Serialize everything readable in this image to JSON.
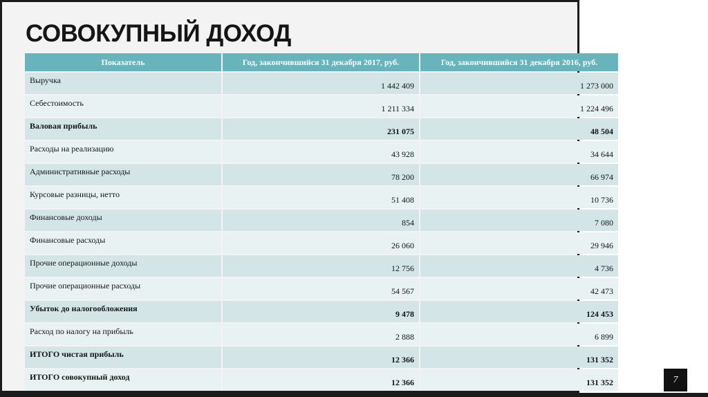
{
  "slide": {
    "title": "СОВОКУПНЫЙ ДОХОД",
    "page_number": "7"
  },
  "table": {
    "headers": [
      "Показатель",
      "Год, закончившийся 31 декабря 2017, руб.",
      "Год, закончившийся 31 декабря 2016, руб."
    ],
    "rows": [
      {
        "label": "Выручка",
        "y2017": "1 442 409",
        "y2016": "1 273 000",
        "bold": false
      },
      {
        "label": "Себестоимость",
        "y2017": "1 211 334",
        "y2016": "1 224 496",
        "bold": false
      },
      {
        "label": "Валовая прибыль",
        "y2017": "231 075",
        "y2016": "48 504",
        "bold": true
      },
      {
        "label": "Расходы на реализацию",
        "y2017": "43 928",
        "y2016": "34 644",
        "bold": false
      },
      {
        "label": "Административные расходы",
        "y2017": "78 200",
        "y2016": "66 974",
        "bold": false
      },
      {
        "label": "Курсовые разницы, нетто",
        "y2017": "51 408",
        "y2016": "10 736",
        "bold": false
      },
      {
        "label": "Финансовые доходы",
        "y2017": "854",
        "y2016": "7 080",
        "bold": false
      },
      {
        "label": "Финансовые расходы",
        "y2017": "26 060",
        "y2016": "29 946",
        "bold": false
      },
      {
        "label": "Прочие операционные доходы",
        "y2017": "12 756",
        "y2016": "4 736",
        "bold": false
      },
      {
        "label": "Прочие операционные расходы",
        "y2017": "54 567",
        "y2016": "42 473",
        "bold": false
      },
      {
        "label": "Убыток до налогообложения",
        "y2017": "9 478",
        "y2016": "124 453",
        "bold": true
      },
      {
        "label": "Расход по налогу на прибыль",
        "y2017": "2 888",
        "y2016": "6 899",
        "bold": false
      },
      {
        "label": "ИТОГО чистая прибыль",
        "y2017": "12 366",
        "y2016": "131 352",
        "bold": true
      },
      {
        "label": "ИТОГО совокупный доход",
        "y2017": "12 366",
        "y2016": "131 352",
        "bold": true
      }
    ]
  },
  "colors": {
    "header_bg": "#67b4bd",
    "row_odd": "#d3e5e6",
    "row_even": "#e9f2f2"
  }
}
